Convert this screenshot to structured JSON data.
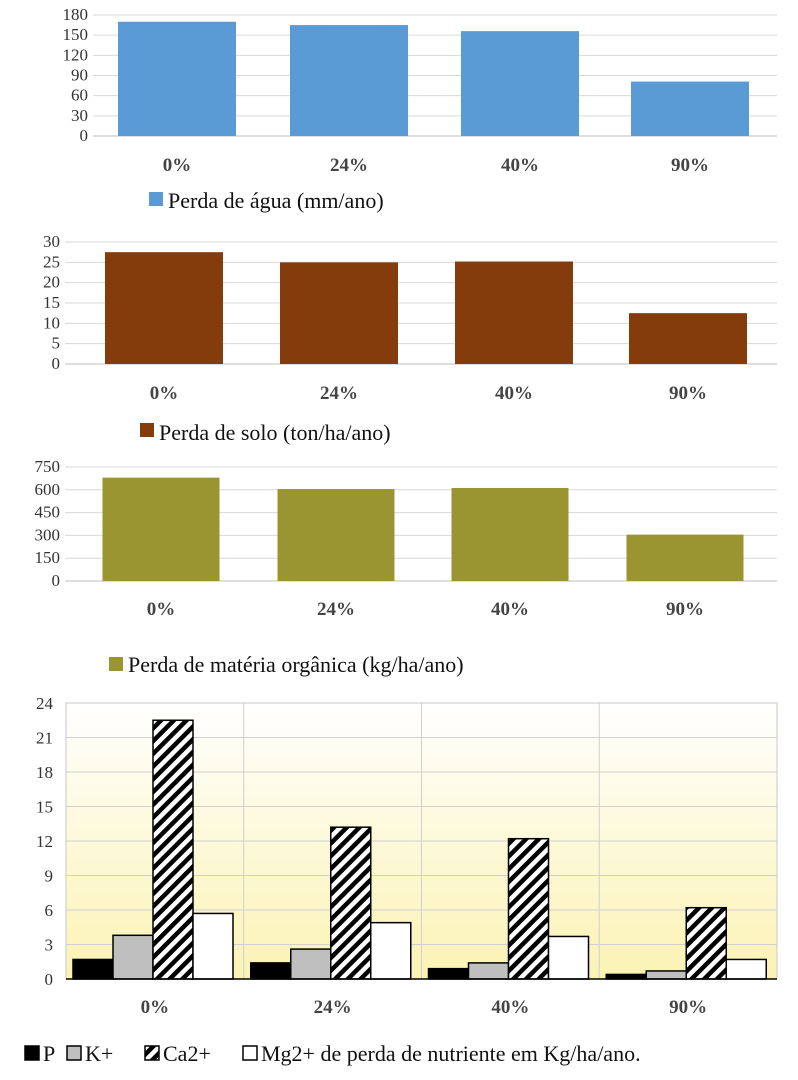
{
  "chart_data": [
    {
      "type": "bar",
      "categories": [
        "0%",
        "24%",
        "40%",
        "90%"
      ],
      "series": [
        {
          "name": "Perda de água (mm/ano)",
          "values": [
            170,
            165,
            156,
            81
          ]
        }
      ],
      "ylim": [
        0,
        180
      ],
      "yticks": [
        0,
        30,
        60,
        90,
        120,
        150,
        180
      ],
      "grid": true,
      "legend": "bottom-left",
      "color": "#5b9bd5"
    },
    {
      "type": "bar",
      "categories": [
        "0%",
        "24%",
        "40%",
        "90%"
      ],
      "series": [
        {
          "name": "Perda de solo (ton/ha/ano)",
          "values": [
            27.5,
            25,
            25.2,
            12.5
          ]
        }
      ],
      "ylim": [
        0,
        30
      ],
      "yticks": [
        0,
        5,
        10,
        15,
        20,
        25,
        30
      ],
      "grid": true,
      "legend": "bottom-left",
      "color": "#843c0c"
    },
    {
      "type": "bar",
      "categories": [
        "0%",
        "24%",
        "40%",
        "90%"
      ],
      "series": [
        {
          "name": "Perda de matéria orgânica (kg/ha/ano)",
          "values": [
            680,
            605,
            612,
            305
          ]
        }
      ],
      "ylim": [
        0,
        750
      ],
      "yticks": [
        0,
        150,
        300,
        450,
        600,
        750
      ],
      "grid": true,
      "legend": "bottom-left",
      "color": "#9a9530"
    },
    {
      "type": "bar",
      "categories": [
        "0%",
        "24%",
        "40%",
        "90%"
      ],
      "series": [
        {
          "name": "P",
          "values": [
            1.7,
            1.4,
            0.9,
            0.4
          ]
        },
        {
          "name": "K+",
          "values": [
            3.8,
            2.6,
            1.4,
            0.7
          ]
        },
        {
          "name": "Ca2+",
          "values": [
            22.5,
            13.2,
            12.2,
            6.2
          ]
        },
        {
          "name": "Mg2+ de perda de nutriente em Kg/ha/ano.",
          "values": [
            5.7,
            4.9,
            3.7,
            1.7
          ]
        }
      ],
      "ylim": [
        0,
        24
      ],
      "yticks": [
        0,
        3,
        6,
        9,
        12,
        15,
        18,
        21,
        24
      ],
      "grid": true,
      "legend": "bottom",
      "background": "gradient white to light yellow"
    }
  ]
}
